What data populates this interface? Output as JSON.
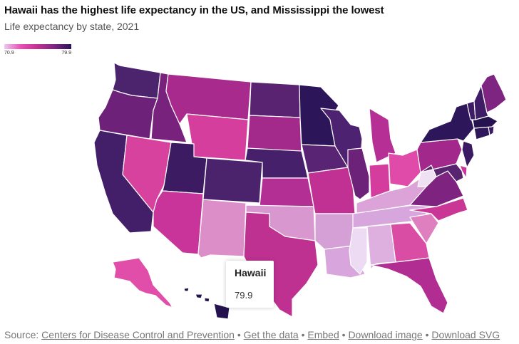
{
  "header": {
    "title": "Hawaii has the highest life expectancy in the US, and Mississippi the lowest",
    "subtitle": "Life expectancy by state, 2021"
  },
  "legend": {
    "min_label": "70.9",
    "max_label": "79.9",
    "min_color": "#eac9ef",
    "max_color": "#2a1458"
  },
  "chart_data": {
    "type": "choropleth",
    "title": "Hawaii has the highest life expectancy in the US, and Mississippi the lowest",
    "subtitle": "Life expectancy by state, 2021",
    "value_range": [
      70.9,
      79.9
    ],
    "regions": [
      {
        "name": "Washington",
        "color": "#4c236d"
      },
      {
        "name": "Oregon",
        "color": "#6e2178"
      },
      {
        "name": "California",
        "color": "#431e69"
      },
      {
        "name": "Idaho",
        "color": "#79227d"
      },
      {
        "name": "Nevada",
        "color": "#d8429f"
      },
      {
        "name": "Montana",
        "color": "#a72a8c"
      },
      {
        "name": "Wyoming",
        "color": "#d53e9c"
      },
      {
        "name": "Utah",
        "color": "#3d1b63"
      },
      {
        "name": "Arizona",
        "color": "#c9349a"
      },
      {
        "name": "Colorado",
        "color": "#4b226c"
      },
      {
        "name": "New Mexico",
        "color": "#dc8ec9"
      },
      {
        "name": "North Dakota",
        "color": "#5a2372"
      },
      {
        "name": "South Dakota",
        "color": "#a3298a"
      },
      {
        "name": "Nebraska",
        "color": "#47206b"
      },
      {
        "name": "Kansas",
        "color": "#b42f94"
      },
      {
        "name": "Oklahoma",
        "color": "#d898cf"
      },
      {
        "name": "Texas",
        "color": "#bf3191"
      },
      {
        "name": "Minnesota",
        "color": "#2c1659"
      },
      {
        "name": "Iowa",
        "color": "#5a2474"
      },
      {
        "name": "Missouri",
        "color": "#c13193"
      },
      {
        "name": "Arkansas",
        "color": "#d5a0d6"
      },
      {
        "name": "Louisiana",
        "color": "#d8a6dd"
      },
      {
        "name": "Wisconsin",
        "color": "#4d2270"
      },
      {
        "name": "Illinois",
        "color": "#6c2278"
      },
      {
        "name": "Michigan",
        "color": "#b52f95"
      },
      {
        "name": "Indiana",
        "color": "#d43c9d"
      },
      {
        "name": "Ohio",
        "color": "#e04aa8"
      },
      {
        "name": "Kentucky",
        "color": "#dba3d8"
      },
      {
        "name": "Tennessee",
        "color": "#d6a6dc"
      },
      {
        "name": "Mississippi",
        "color": "#eddaf3"
      },
      {
        "name": "Alabama",
        "color": "#ddb0e0"
      },
      {
        "name": "Georgia",
        "color": "#d94ea4"
      },
      {
        "name": "Florida",
        "color": "#b22d92"
      },
      {
        "name": "South Carolina",
        "color": "#e07fc0"
      },
      {
        "name": "North Carolina",
        "color": "#c93695"
      },
      {
        "name": "Virginia",
        "color": "#7e237f"
      },
      {
        "name": "West Virginia",
        "color": "#efe0f3"
      },
      {
        "name": "Pennsylvania",
        "color": "#a3288b"
      },
      {
        "name": "New York",
        "color": "#2d165a"
      },
      {
        "name": "New Jersey",
        "color": "#3a1a62"
      },
      {
        "name": "Maryland",
        "color": "#58236f"
      },
      {
        "name": "Delaware",
        "color": "#c93598"
      },
      {
        "name": "Connecticut",
        "color": "#2e175a"
      },
      {
        "name": "Rhode Island",
        "color": "#3a1b62"
      },
      {
        "name": "Massachusetts",
        "color": "#25124f"
      },
      {
        "name": "Vermont",
        "color": "#3e1c65"
      },
      {
        "name": "New Hampshire",
        "color": "#3f1c66"
      },
      {
        "name": "Maine",
        "color": "#7e2582"
      },
      {
        "name": "Alaska",
        "color": "#e14ea9"
      },
      {
        "name": "Hawaii",
        "color": "#24124e",
        "value": 79.9
      }
    ]
  },
  "tooltip": {
    "state_name": "Hawaii",
    "value": "79.9"
  },
  "footer": {
    "source_prefix": "Source:",
    "source_link": "Centers for Disease Control and Prevention",
    "get_data": "Get the data",
    "embed": "Embed",
    "download_image": "Download image",
    "download_svg": "Download SVG",
    "separator": "•"
  }
}
